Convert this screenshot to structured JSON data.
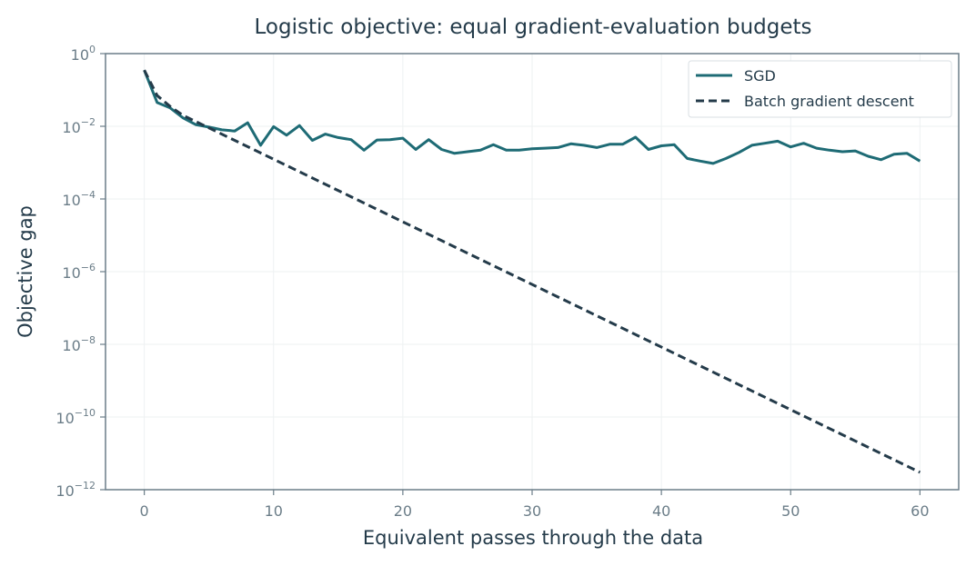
{
  "chart_data": {
    "type": "line",
    "title": "Logistic objective: equal gradient-evaluation budgets",
    "xlabel": "Equivalent passes through the data",
    "ylabel": "Objective gap",
    "xlim": [
      -3,
      63
    ],
    "ylim": [
      1e-12,
      1
    ],
    "yscale": "log",
    "xticks": [
      0,
      10,
      20,
      30,
      40,
      50,
      60
    ],
    "yticks": [
      {
        "base": "10",
        "exp": "0",
        "value": 1
      },
      {
        "base": "10",
        "exp": "−2",
        "value": 0.01
      },
      {
        "base": "10",
        "exp": "−4",
        "value": 0.0001
      },
      {
        "base": "10",
        "exp": "−6",
        "value": 1e-06
      },
      {
        "base": "10",
        "exp": "−8",
        "value": 1e-08
      },
      {
        "base": "10",
        "exp": "−10",
        "value": 1e-10
      },
      {
        "base": "10",
        "exp": "−12",
        "value": 1e-12
      }
    ],
    "grid": true,
    "legend_position": "top-right",
    "series": [
      {
        "name": "SGD",
        "style": "solid",
        "color": "#1e6b75",
        "x": [
          0,
          1,
          2,
          3,
          4,
          5,
          6,
          7,
          8,
          9,
          10,
          11,
          12,
          13,
          14,
          15,
          16,
          17,
          18,
          19,
          20,
          21,
          22,
          23,
          24,
          25,
          26,
          27,
          28,
          29,
          30,
          31,
          32,
          33,
          34,
          35,
          36,
          37,
          38,
          39,
          40,
          41,
          42,
          43,
          44,
          45,
          46,
          47,
          48,
          49,
          50,
          51,
          52,
          53,
          54,
          55,
          56,
          57,
          58,
          59,
          60
        ],
        "y": [
          0.35,
          0.045,
          0.032,
          0.017,
          0.011,
          0.0095,
          0.008,
          0.0074,
          0.0125,
          0.003,
          0.0098,
          0.0057,
          0.0105,
          0.0041,
          0.0061,
          0.0049,
          0.0043,
          0.0022,
          0.0042,
          0.0043,
          0.0047,
          0.0023,
          0.0043,
          0.0023,
          0.0018,
          0.002,
          0.0022,
          0.0031,
          0.0022,
          0.0022,
          0.0024,
          0.0025,
          0.0026,
          0.0033,
          0.003,
          0.0026,
          0.0032,
          0.0032,
          0.005,
          0.0023,
          0.0029,
          0.0031,
          0.0013,
          0.0011,
          0.00095,
          0.0013,
          0.0019,
          0.003,
          0.0034,
          0.0039,
          0.0027,
          0.0034,
          0.0025,
          0.0022,
          0.002,
          0.0021,
          0.0015,
          0.0012,
          0.0017,
          0.0018,
          0.0011
        ]
      },
      {
        "name": "Batch gradient descent",
        "style": "dashed",
        "color": "#243b4a",
        "x": [
          0,
          1,
          2,
          3,
          60
        ],
        "y": [
          0.35,
          0.07,
          0.035,
          0.02,
          3e-12
        ]
      }
    ]
  },
  "colors": {
    "axes": "#6b7d88",
    "grid": "#eef1f2",
    "text": "#243b4a"
  }
}
